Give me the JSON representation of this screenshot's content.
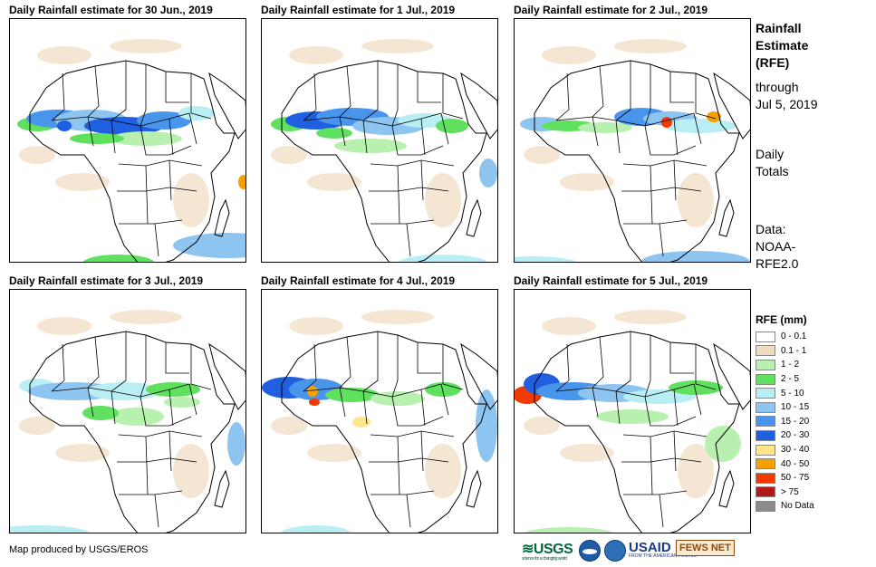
{
  "panels": [
    {
      "title": "Daily Rainfall estimate for 30 Jun., 2019"
    },
    {
      "title": "Daily Rainfall estimate for 1 Jul., 2019"
    },
    {
      "title": "Daily Rainfall estimate for 2 Jul., 2019"
    },
    {
      "title": "Daily Rainfall estimate for 3 Jul., 2019"
    },
    {
      "title": "Daily Rainfall estimate for 4 Jul., 2019"
    },
    {
      "title": "Daily Rainfall estimate for 5 Jul., 2019"
    }
  ],
  "side": {
    "title_l1": "Rainfall",
    "title_l2": "Estimate",
    "title_l3": "(RFE)",
    "through_l1": "through",
    "through_l2": "Jul 5, 2019",
    "daily_l1": "Daily",
    "daily_l2": "Totals",
    "source_l1": "Data:",
    "source_l2": "NOAA-",
    "source_l3": "RFE2.0"
  },
  "legend": {
    "title": "RFE (mm)",
    "items": [
      {
        "label": "0 - 0.1",
        "color": "#ffffff"
      },
      {
        "label": "0.1 - 1",
        "color": "#efdcc0"
      },
      {
        "label": "1 - 2",
        "color": "#b8f0b0"
      },
      {
        "label": "2 - 5",
        "color": "#5fe05f"
      },
      {
        "label": "5 - 10",
        "color": "#b8eef4"
      },
      {
        "label": "10 - 15",
        "color": "#8ec4f0"
      },
      {
        "label": "15 - 20",
        "color": "#4a95ec"
      },
      {
        "label": "20 - 30",
        "color": "#1f5fe0"
      },
      {
        "label": "30 - 40",
        "color": "#ffe68a"
      },
      {
        "label": "40 - 50",
        "color": "#f5a000"
      },
      {
        "label": "50 - 75",
        "color": "#f03a00"
      },
      {
        "label": "> 75",
        "color": "#b01a1a"
      },
      {
        "label": "No Data",
        "color": "#8c8c8c"
      }
    ]
  },
  "footer": {
    "credit": "Map produced by USGS/EROS"
  },
  "logos": {
    "usgs": "USGS",
    "usgs_tag": "science for a changing world",
    "usaid": "USAID",
    "usaid_tag": "FROM THE AMERICAN PEOPLE",
    "fews": "FEWS NET"
  }
}
